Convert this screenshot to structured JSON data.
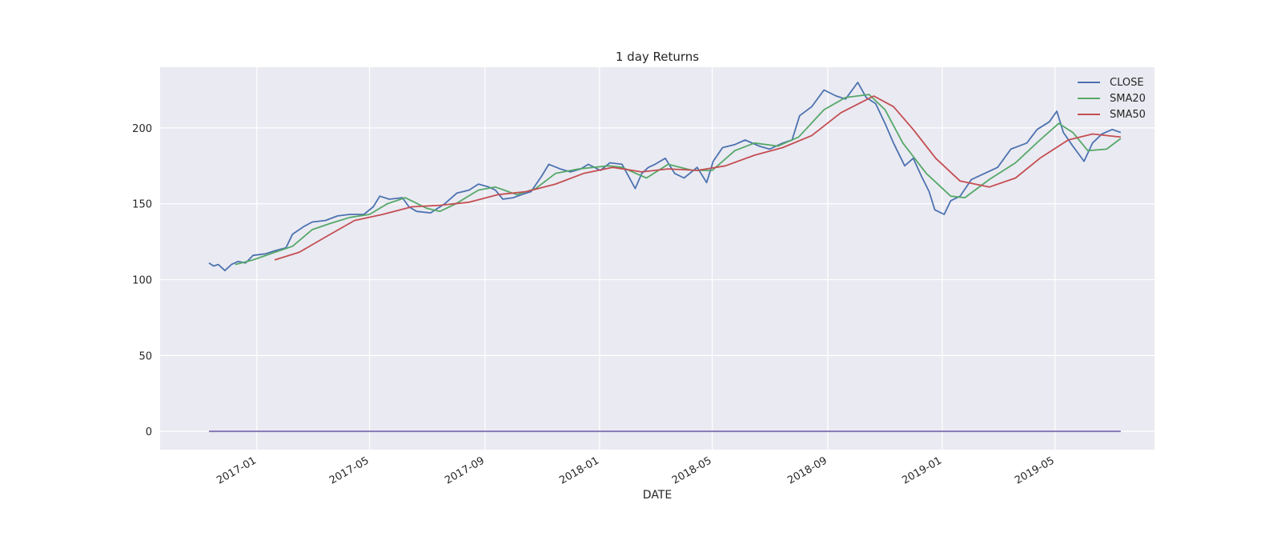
{
  "chart_data": {
    "type": "line",
    "title": "1 day Returns",
    "xlabel": "DATE",
    "ylabel": "",
    "xlim": [
      "2016-09-20",
      "2019-08-15"
    ],
    "ylim": [
      -12,
      240
    ],
    "x_ticks": [
      "2017-01",
      "2017-05",
      "2017-09",
      "2018-01",
      "2018-05",
      "2018-09",
      "2019-01",
      "2019-05"
    ],
    "y_ticks": [
      0,
      50,
      100,
      150,
      200
    ],
    "grid": true,
    "legend": {
      "position": "top-right",
      "entries": [
        "CLOSE",
        "SMA20",
        "SMA50"
      ]
    },
    "background": "#eaeaf2",
    "series": [
      {
        "name": "CLOSE",
        "color": "#4c72b0",
        "points": [
          [
            "2016-11-11",
            111
          ],
          [
            "2016-11-16",
            109
          ],
          [
            "2016-11-21",
            110
          ],
          [
            "2016-11-28",
            106
          ],
          [
            "2016-12-05",
            110
          ],
          [
            "2016-12-12",
            112
          ],
          [
            "2016-12-20",
            111
          ],
          [
            "2016-12-28",
            116
          ],
          [
            "2017-01-10",
            117
          ],
          [
            "2017-01-20",
            119
          ],
          [
            "2017-02-01",
            121
          ],
          [
            "2017-02-08",
            130
          ],
          [
            "2017-02-20",
            135
          ],
          [
            "2017-03-01",
            138
          ],
          [
            "2017-03-15",
            139
          ],
          [
            "2017-03-28",
            142
          ],
          [
            "2017-04-10",
            143
          ],
          [
            "2017-04-25",
            143
          ],
          [
            "2017-05-05",
            148
          ],
          [
            "2017-05-12",
            155
          ],
          [
            "2017-05-22",
            153
          ],
          [
            "2017-06-05",
            154
          ],
          [
            "2017-06-12",
            148
          ],
          [
            "2017-06-20",
            145
          ],
          [
            "2017-07-05",
            144
          ],
          [
            "2017-07-20",
            150
          ],
          [
            "2017-08-02",
            157
          ],
          [
            "2017-08-15",
            159
          ],
          [
            "2017-08-25",
            163
          ],
          [
            "2017-09-05",
            161
          ],
          [
            "2017-09-12",
            159
          ],
          [
            "2017-09-20",
            153
          ],
          [
            "2017-10-01",
            154
          ],
          [
            "2017-10-10",
            156
          ],
          [
            "2017-10-20",
            158
          ],
          [
            "2017-10-31",
            168
          ],
          [
            "2017-11-08",
            176
          ],
          [
            "2017-11-20",
            173
          ],
          [
            "2017-12-01",
            171
          ],
          [
            "2017-12-12",
            173
          ],
          [
            "2017-12-20",
            176
          ],
          [
            "2018-01-02",
            172
          ],
          [
            "2018-01-12",
            177
          ],
          [
            "2018-01-25",
            176
          ],
          [
            "2018-02-01",
            168
          ],
          [
            "2018-02-08",
            160
          ],
          [
            "2018-02-15",
            170
          ],
          [
            "2018-02-22",
            174
          ],
          [
            "2018-03-01",
            176
          ],
          [
            "2018-03-12",
            180
          ],
          [
            "2018-03-22",
            170
          ],
          [
            "2018-04-01",
            167
          ],
          [
            "2018-04-15",
            174
          ],
          [
            "2018-04-25",
            164
          ],
          [
            "2018-05-02",
            178
          ],
          [
            "2018-05-12",
            187
          ],
          [
            "2018-05-25",
            189
          ],
          [
            "2018-06-05",
            192
          ],
          [
            "2018-06-20",
            188
          ],
          [
            "2018-07-01",
            186
          ],
          [
            "2018-07-15",
            190
          ],
          [
            "2018-07-25",
            192
          ],
          [
            "2018-08-02",
            208
          ],
          [
            "2018-08-15",
            214
          ],
          [
            "2018-08-28",
            225
          ],
          [
            "2018-09-10",
            221
          ],
          [
            "2018-09-20",
            219
          ],
          [
            "2018-10-03",
            230
          ],
          [
            "2018-10-12",
            220
          ],
          [
            "2018-10-22",
            216
          ],
          [
            "2018-11-01",
            203
          ],
          [
            "2018-11-10",
            190
          ],
          [
            "2018-11-22",
            175
          ],
          [
            "2018-12-01",
            180
          ],
          [
            "2018-12-10",
            168
          ],
          [
            "2018-12-18",
            158
          ],
          [
            "2018-12-24",
            146
          ],
          [
            "2019-01-03",
            143
          ],
          [
            "2019-01-10",
            152
          ],
          [
            "2019-01-20",
            155
          ],
          [
            "2019-02-01",
            166
          ],
          [
            "2019-02-15",
            170
          ],
          [
            "2019-03-01",
            174
          ],
          [
            "2019-03-15",
            186
          ],
          [
            "2019-04-01",
            190
          ],
          [
            "2019-04-12",
            199
          ],
          [
            "2019-04-25",
            204
          ],
          [
            "2019-05-03",
            211
          ],
          [
            "2019-05-10",
            197
          ],
          [
            "2019-05-20",
            188
          ],
          [
            "2019-06-01",
            178
          ],
          [
            "2019-06-10",
            190
          ],
          [
            "2019-06-20",
            196
          ],
          [
            "2019-07-01",
            199
          ],
          [
            "2019-07-10",
            197
          ]
        ]
      },
      {
        "name": "SMA20",
        "color": "#55a868",
        "points": [
          [
            "2016-12-09",
            110
          ],
          [
            "2016-12-28",
            113
          ],
          [
            "2017-01-20",
            118
          ],
          [
            "2017-02-08",
            122
          ],
          [
            "2017-03-01",
            133
          ],
          [
            "2017-03-20",
            137
          ],
          [
            "2017-04-10",
            141
          ],
          [
            "2017-05-01",
            143
          ],
          [
            "2017-05-20",
            150
          ],
          [
            "2017-06-08",
            154
          ],
          [
            "2017-07-01",
            147
          ],
          [
            "2017-07-15",
            145
          ],
          [
            "2017-08-01",
            150
          ],
          [
            "2017-08-25",
            159
          ],
          [
            "2017-09-12",
            161
          ],
          [
            "2017-10-05",
            156
          ],
          [
            "2017-10-25",
            160
          ],
          [
            "2017-11-15",
            170
          ],
          [
            "2017-12-10",
            173
          ],
          [
            "2018-01-10",
            175
          ],
          [
            "2018-01-25",
            174
          ],
          [
            "2018-02-20",
            167
          ],
          [
            "2018-03-15",
            176
          ],
          [
            "2018-04-10",
            172
          ],
          [
            "2018-05-01",
            172
          ],
          [
            "2018-05-25",
            185
          ],
          [
            "2018-06-15",
            190
          ],
          [
            "2018-07-10",
            188
          ],
          [
            "2018-08-01",
            194
          ],
          [
            "2018-08-28",
            212
          ],
          [
            "2018-09-20",
            220
          ],
          [
            "2018-10-15",
            222
          ],
          [
            "2018-11-01",
            212
          ],
          [
            "2018-11-20",
            190
          ],
          [
            "2018-12-15",
            170
          ],
          [
            "2019-01-10",
            155
          ],
          [
            "2019-01-25",
            154
          ],
          [
            "2019-02-20",
            166
          ],
          [
            "2019-03-20",
            177
          ],
          [
            "2019-04-15",
            192
          ],
          [
            "2019-05-05",
            203
          ],
          [
            "2019-05-20",
            197
          ],
          [
            "2019-06-05",
            185
          ],
          [
            "2019-06-25",
            186
          ],
          [
            "2019-07-10",
            193
          ]
        ]
      },
      {
        "name": "SMA50",
        "color": "#c44e52",
        "points": [
          [
            "2017-01-20",
            113
          ],
          [
            "2017-02-15",
            118
          ],
          [
            "2017-03-15",
            128
          ],
          [
            "2017-04-15",
            139
          ],
          [
            "2017-05-15",
            143
          ],
          [
            "2017-06-15",
            148
          ],
          [
            "2017-07-15",
            149
          ],
          [
            "2017-08-15",
            151
          ],
          [
            "2017-09-15",
            156
          ],
          [
            "2017-10-15",
            158
          ],
          [
            "2017-11-15",
            163
          ],
          [
            "2017-12-15",
            170
          ],
          [
            "2018-01-15",
            174
          ],
          [
            "2018-02-15",
            171
          ],
          [
            "2018-03-15",
            173
          ],
          [
            "2018-04-15",
            172
          ],
          [
            "2018-05-15",
            175
          ],
          [
            "2018-06-15",
            182
          ],
          [
            "2018-07-15",
            187
          ],
          [
            "2018-08-15",
            195
          ],
          [
            "2018-09-15",
            210
          ],
          [
            "2018-10-20",
            221
          ],
          [
            "2018-11-10",
            214
          ],
          [
            "2018-12-01",
            199
          ],
          [
            "2018-12-25",
            180
          ],
          [
            "2019-01-20",
            165
          ],
          [
            "2019-02-20",
            161
          ],
          [
            "2019-03-20",
            167
          ],
          [
            "2019-04-15",
            180
          ],
          [
            "2019-05-15",
            192
          ],
          [
            "2019-06-10",
            196
          ],
          [
            "2019-07-10",
            194
          ]
        ]
      },
      {
        "name": "",
        "color": "#8172b2",
        "points": [
          [
            "2016-11-11",
            0
          ],
          [
            "2019-07-10",
            0
          ]
        ]
      }
    ]
  }
}
